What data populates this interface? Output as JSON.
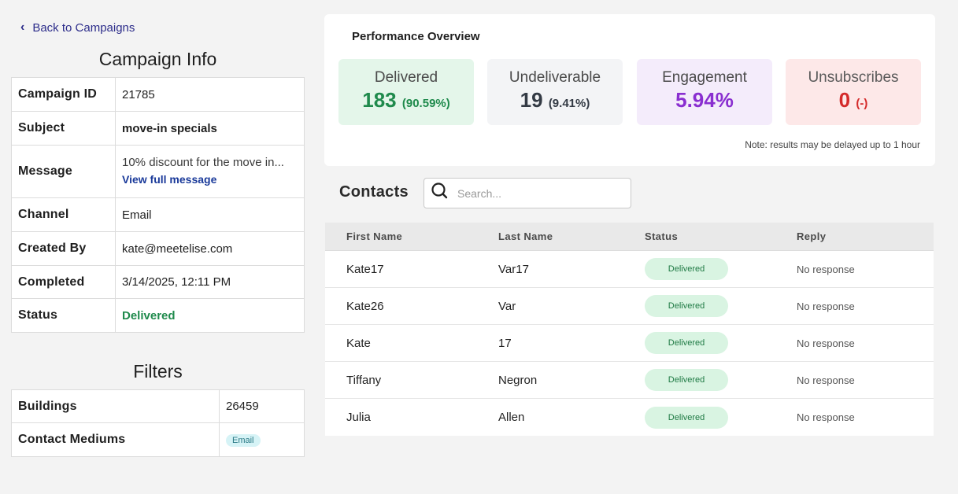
{
  "back_link": "Back to Campaigns",
  "campaign_info": {
    "title": "Campaign Info",
    "rows": [
      {
        "label": "Campaign ID",
        "value": "21785"
      },
      {
        "label": "Subject",
        "value": "move-in specials"
      },
      {
        "label": "Message",
        "value": "10% discount for the move in...",
        "link": "View full message"
      },
      {
        "label": "Channel",
        "value": "Email"
      },
      {
        "label": "Created By",
        "value": "kate@meetelise.com"
      },
      {
        "label": "Completed",
        "value": "3/14/2025, 12:11 PM"
      },
      {
        "label": "Status",
        "value": "Delivered"
      }
    ]
  },
  "filters": {
    "title": "Filters",
    "rows": [
      {
        "label": "Buildings",
        "value": "26459"
      },
      {
        "label": "Contact Mediums",
        "value": "Email"
      }
    ]
  },
  "performance": {
    "title": "Performance Overview",
    "stats": [
      {
        "label": "Delivered",
        "value": "183",
        "percent": "(90.59%)"
      },
      {
        "label": "Undeliverable",
        "value": "19",
        "percent": "(9.41%)"
      },
      {
        "label": "Engagement",
        "value": "5.94%",
        "percent": ""
      },
      {
        "label": "Unsubscribes",
        "value": "0",
        "percent": "(-)"
      }
    ],
    "note": "Note: results may be delayed up to 1 hour"
  },
  "contacts": {
    "title": "Contacts",
    "search_placeholder": "Search...",
    "columns": [
      "First Name",
      "Last Name",
      "Status",
      "Reply"
    ],
    "rows": [
      {
        "first": "Kate17",
        "last": "Var17",
        "status": "Delivered",
        "reply": "No response"
      },
      {
        "first": "Kate26",
        "last": "Var",
        "status": "Delivered",
        "reply": "No response"
      },
      {
        "first": "Kate",
        "last": "17",
        "status": "Delivered",
        "reply": "No response"
      },
      {
        "first": "Tiffany",
        "last": "Negron",
        "status": "Delivered",
        "reply": "No response"
      },
      {
        "first": "Julia",
        "last": "Allen",
        "status": "Delivered",
        "reply": "No response"
      }
    ]
  }
}
